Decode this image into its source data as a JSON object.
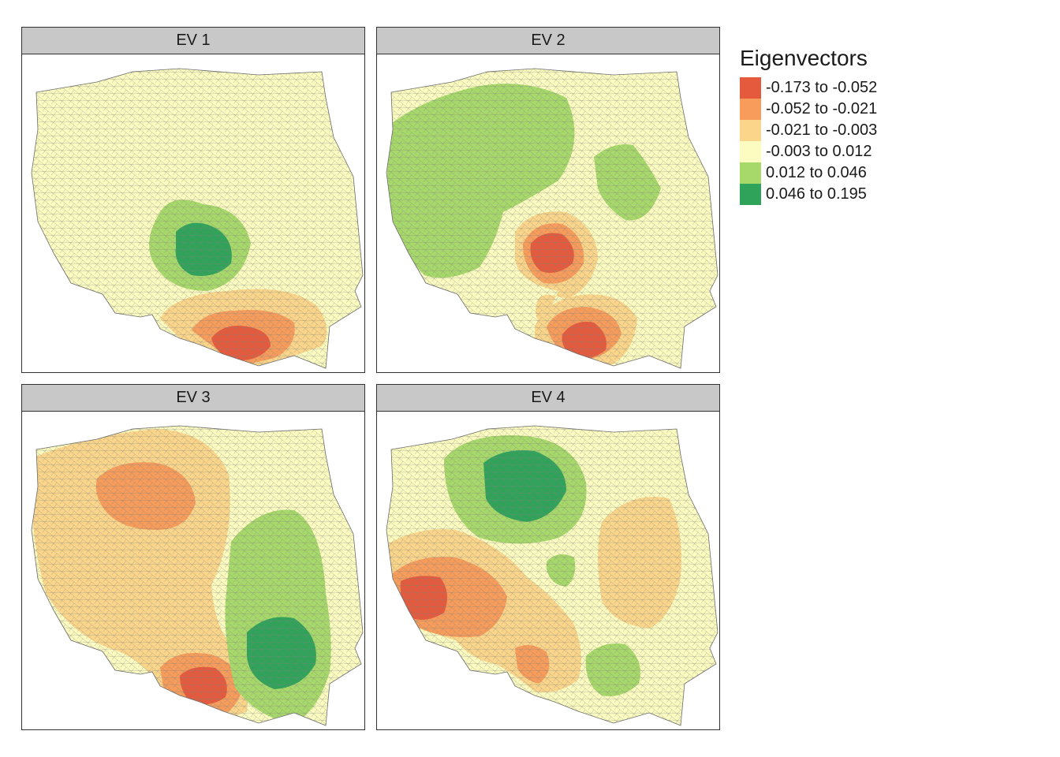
{
  "legend": {
    "title": "Eigenvectors",
    "classes": [
      {
        "label": "-0.173 to -0.052",
        "color": "#e55a3c"
      },
      {
        "label": "-0.052 to -0.021",
        "color": "#f79c5a"
      },
      {
        "label": "-0.021 to -0.003",
        "color": "#fbd68a"
      },
      {
        "label": "-0.003 to 0.012",
        "color": "#fcfcc0"
      },
      {
        "label": "0.012 to 0.046",
        "color": "#a7d86a"
      },
      {
        "label": "0.046 to 0.195",
        "color": "#2fa359"
      }
    ]
  },
  "panels": [
    {
      "title": "EV 1"
    },
    {
      "title": "EV 2"
    },
    {
      "title": "EV 3"
    },
    {
      "title": "EV 4"
    }
  ]
}
